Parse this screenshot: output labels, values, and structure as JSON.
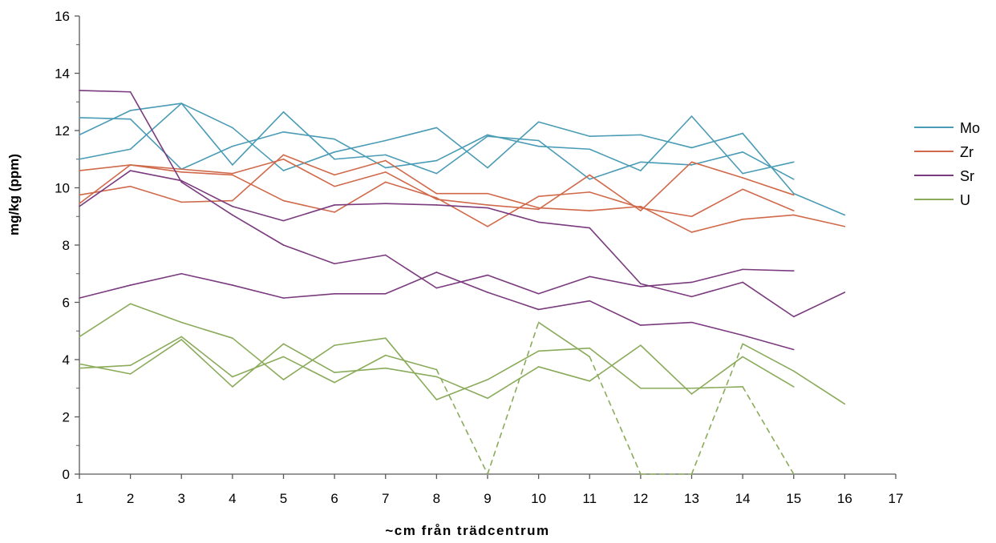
{
  "chart_data": {
    "type": "line",
    "title": "",
    "xlabel": "~cm från trädcentrum",
    "ylabel": "mg/kg (ppm)",
    "xlim": [
      1,
      17
    ],
    "ylim": [
      0,
      16
    ],
    "x_ticks": [
      1,
      2,
      3,
      4,
      5,
      6,
      7,
      8,
      9,
      10,
      11,
      12,
      13,
      14,
      15,
      16,
      17
    ],
    "y_ticks": [
      0,
      2,
      4,
      6,
      8,
      10,
      12,
      14,
      16
    ],
    "grid": false,
    "legend_position": "right",
    "colors": {
      "Mo": "#4a9bb5",
      "Zr": "#d0694a",
      "Sr": "#7a3a7e",
      "U": "#8aab5a"
    },
    "legend": [
      "Mo",
      "Zr",
      "Sr",
      "U"
    ],
    "series": [
      {
        "name": "Mo",
        "x": [
          1,
          2,
          3,
          4,
          5,
          6,
          7,
          8,
          9,
          10,
          11,
          12,
          13,
          14,
          15
        ],
        "y": [
          12.45,
          12.4,
          10.65,
          11.45,
          11.95,
          11.7,
          10.7,
          10.95,
          11.85,
          11.45,
          11.35,
          10.6,
          12.5,
          10.5,
          10.9
        ]
      },
      {
        "name": "Mo",
        "x": [
          1,
          2,
          3,
          4,
          5,
          6,
          7,
          8,
          9,
          10,
          11,
          12,
          13,
          14,
          15,
          16
        ],
        "y": [
          11.85,
          12.7,
          12.95,
          12.1,
          10.6,
          11.25,
          11.65,
          12.1,
          10.7,
          12.3,
          11.8,
          11.85,
          11.4,
          11.9,
          9.8,
          9.05
        ]
      },
      {
        "name": "Mo",
        "x": [
          1,
          2,
          3,
          4,
          5,
          6,
          7,
          8,
          9,
          10,
          11,
          12,
          13,
          14,
          15
        ],
        "y": [
          11.0,
          11.35,
          12.95,
          10.8,
          12.65,
          11.0,
          11.15,
          10.5,
          11.8,
          11.65,
          10.3,
          10.9,
          10.8,
          11.25,
          10.3
        ]
      },
      {
        "name": "Zr",
        "x": [
          1,
          2,
          3,
          4,
          5,
          6,
          7,
          8,
          9,
          10,
          11,
          12,
          13,
          14,
          15
        ],
        "y": [
          10.6,
          10.8,
          10.65,
          10.5,
          11.0,
          10.05,
          10.55,
          9.6,
          9.4,
          9.25,
          10.45,
          9.2,
          10.9,
          10.35,
          9.75
        ]
      },
      {
        "name": "Zr",
        "x": [
          1,
          2,
          3,
          4,
          5,
          6,
          7,
          8,
          9,
          10,
          11,
          12,
          13,
          14,
          15,
          16
        ],
        "y": [
          9.75,
          10.05,
          9.5,
          9.55,
          11.15,
          10.45,
          10.95,
          9.8,
          9.8,
          9.3,
          9.2,
          9.35,
          8.45,
          8.9,
          9.05,
          8.65
        ]
      },
      {
        "name": "Zr",
        "x": [
          1,
          2,
          3,
          4,
          5,
          6,
          7,
          8,
          9,
          10,
          11,
          12,
          13,
          14,
          15
        ],
        "y": [
          9.45,
          10.8,
          10.55,
          10.45,
          9.55,
          9.15,
          10.2,
          9.65,
          8.65,
          9.7,
          9.85,
          9.3,
          9.0,
          9.95,
          9.2
        ]
      },
      {
        "name": "Sr",
        "x": [
          1,
          2,
          3,
          4,
          5,
          6,
          7,
          8,
          9,
          10,
          11,
          12,
          13,
          14,
          15
        ],
        "y": [
          13.4,
          13.35,
          10.2,
          9.05,
          8.0,
          7.35,
          7.65,
          6.5,
          6.95,
          6.3,
          6.9,
          6.55,
          6.7,
          7.15,
          7.1
        ]
      },
      {
        "name": "Sr",
        "x": [
          1,
          2,
          3,
          4,
          5,
          6,
          7,
          8,
          9,
          10,
          11,
          12,
          13,
          14,
          15,
          16
        ],
        "y": [
          9.35,
          10.6,
          10.25,
          9.35,
          8.85,
          9.4,
          9.45,
          9.4,
          9.3,
          8.8,
          8.6,
          6.65,
          6.2,
          6.7,
          5.5,
          6.35
        ]
      },
      {
        "name": "Sr",
        "x": [
          1,
          2,
          3,
          4,
          5,
          6,
          7,
          8,
          9,
          10,
          11,
          12,
          13,
          14,
          15
        ],
        "y": [
          6.15,
          6.6,
          7.0,
          6.6,
          6.15,
          6.3,
          6.3,
          7.05,
          6.35,
          5.75,
          6.05,
          5.2,
          5.3,
          4.85,
          4.35
        ]
      },
      {
        "name": "U",
        "x": [
          1,
          2,
          3,
          4,
          5,
          6,
          7,
          8,
          9,
          10,
          11,
          12,
          13,
          14,
          15
        ],
        "y": [
          4.8,
          5.95,
          5.3,
          4.75,
          3.3,
          4.5,
          4.75,
          2.6,
          3.3,
          4.3,
          4.4,
          3.0,
          3.0,
          3.05,
          0.0
        ],
        "dashed_segments": [
          [
            14,
            15
          ]
        ]
      },
      {
        "name": "U",
        "x": [
          1,
          2,
          3,
          4,
          5,
          6,
          7,
          8,
          9,
          10,
          11,
          12,
          13,
          14,
          15,
          16
        ],
        "y": [
          3.7,
          3.8,
          4.8,
          3.4,
          4.1,
          3.2,
          4.15,
          3.65,
          0.0,
          5.3,
          4.1,
          0.0,
          0.0,
          4.55,
          3.6,
          2.45
        ],
        "dashed_segments": [
          [
            8,
            9
          ],
          [
            9,
            10
          ],
          [
            11,
            12
          ],
          [
            12,
            13
          ],
          [
            13,
            14
          ]
        ]
      },
      {
        "name": "U",
        "x": [
          1,
          2,
          3,
          4,
          5,
          6,
          7,
          8,
          9,
          10,
          11,
          12,
          13,
          14,
          15
        ],
        "y": [
          3.85,
          3.5,
          4.7,
          3.05,
          4.55,
          3.55,
          3.7,
          3.4,
          2.65,
          3.75,
          3.25,
          4.5,
          2.8,
          4.1,
          3.05
        ]
      }
    ]
  }
}
